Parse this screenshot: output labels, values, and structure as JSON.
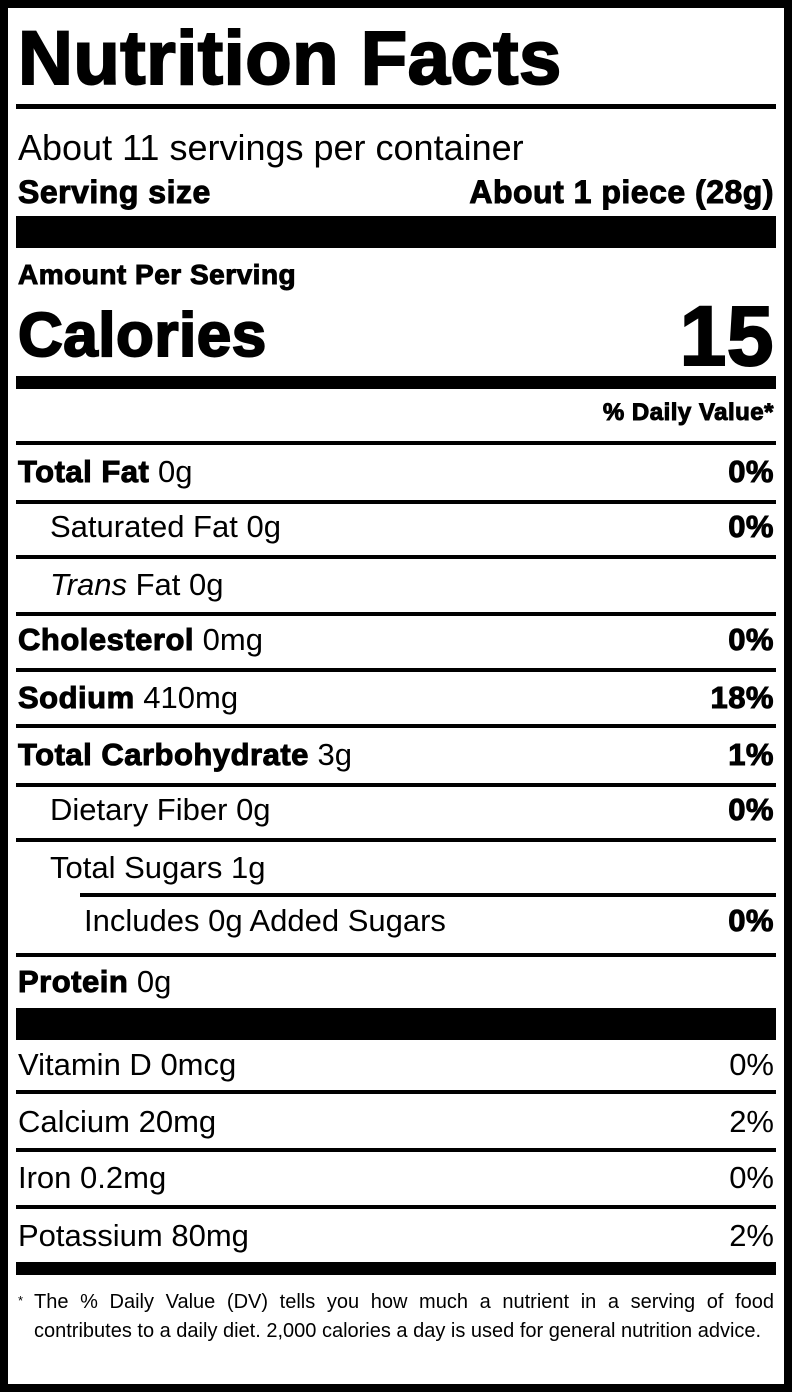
{
  "header": {
    "title": "Nutrition Facts",
    "servings": "About 11 servings per container",
    "serving_size_label": "Serving size",
    "serving_size": "About 1 piece (28g)"
  },
  "calories": {
    "heading": "Amount Per Serving",
    "label": "Calories",
    "value": 15
  },
  "daily_value_heading": "% Daily Value*",
  "nutrients": [
    {
      "name": "Total Fat",
      "amount": "0g",
      "dv": "0%"
    },
    {
      "name": "Saturated Fat",
      "amount": "0g",
      "dv": "0%"
    },
    {
      "name": [
        "Trans",
        "Fat"
      ],
      "amount": "0g"
    },
    {
      "name": "Cholesterol",
      "amount": "0mg",
      "dv": "0%"
    },
    {
      "name": "Sodium",
      "amount": "410mg",
      "dv": "18%"
    },
    {
      "name": "Total Carbohydrate",
      "amount": "3g",
      "dv": "1%"
    },
    {
      "name": "Dietary Fiber",
      "amount": "0g",
      "dv": "0%"
    },
    {
      "name": "Total Sugars",
      "amount": "1g"
    },
    {
      "name": "Includes 0g Added Sugars",
      "dv": "0%"
    },
    {
      "name": "Protein",
      "amount": "0g"
    }
  ],
  "vitamins": [
    {
      "name": "Vitamin D",
      "amount": "0mcg",
      "dv": "0%"
    },
    {
      "name": "Calcium",
      "amount": "20mg",
      "dv": "2%"
    },
    {
      "name": "Iron",
      "amount": "0.2mg",
      "dv": "0%"
    },
    {
      "name": "Potassium",
      "amount": "80mg",
      "dv": "2%"
    }
  ],
  "footnote": {
    "marker": "*",
    "text": "The % Daily Value (DV) tells you how much a nutrient in a serving of food contributes to a daily diet. 2,000 calories a day is used for general nutrition advice."
  }
}
